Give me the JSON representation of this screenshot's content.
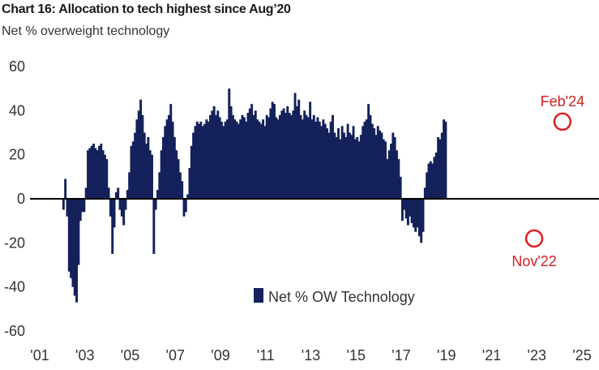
{
  "header": {
    "title": "Chart 16: Allocation to tech highest since Aug’20",
    "subtitle": "Net % overweight technology"
  },
  "chart_data": {
    "type": "bar",
    "title": "Chart 16: Allocation to tech highest since Aug’20",
    "subtitle": "Net % overweight technology",
    "ylabel": "",
    "xlabel": "",
    "ylim": [
      -60,
      60
    ],
    "yticks": [
      60,
      40,
      20,
      0,
      -20,
      -40,
      -60
    ],
    "xlim": [
      2001,
      2025
    ],
    "xticks": [
      "'01",
      "'03",
      "'05",
      "'07",
      "'09",
      "'11",
      "'13",
      "'15",
      "'17",
      "'19",
      "'21",
      "'23",
      "'25"
    ],
    "xtick_years": [
      2001,
      2003,
      2005,
      2007,
      2009,
      2011,
      2013,
      2015,
      2017,
      2019,
      2021,
      2023,
      2025
    ],
    "legend": {
      "position": "bottom-center"
    },
    "grid": false,
    "color": "#14215a",
    "series": [
      {
        "name": "Net % OW Technology",
        "x_start": "2002-01",
        "frequency": "monthly",
        "values": [
          -5,
          9,
          -8,
          -33,
          -36,
          -40,
          -44,
          -47,
          -30,
          -10,
          -6,
          -6,
          5,
          22,
          23,
          24,
          25,
          23,
          22,
          24,
          25,
          22,
          20,
          18,
          5,
          -8,
          -25,
          -13,
          3,
          5,
          -5,
          -8,
          -12,
          -5,
          4,
          12,
          24,
          26,
          30,
          36,
          40,
          45,
          38,
          30,
          25,
          28,
          22,
          20,
          -25,
          -5,
          4,
          12,
          22,
          28,
          33,
          36,
          38,
          43,
          35,
          28,
          22,
          18,
          12,
          8,
          -8,
          -6,
          2,
          14,
          24,
          30,
          33,
          35,
          34,
          35,
          33,
          34,
          36,
          35,
          38,
          40,
          42,
          38,
          40,
          37,
          35,
          33,
          35,
          36,
          50,
          42,
          38,
          36,
          35,
          34,
          36,
          38,
          37,
          35,
          39,
          41,
          43,
          38,
          40,
          36,
          35,
          34,
          36,
          33,
          38,
          37,
          41,
          44,
          43,
          37,
          36,
          38,
          40,
          41,
          39,
          42,
          39,
          38,
          40,
          48,
          42,
          45,
          38,
          36,
          40,
          38,
          37,
          44,
          36,
          38,
          35,
          37,
          35,
          33,
          36,
          34,
          32,
          30,
          35,
          38,
          30,
          28,
          32,
          27,
          33,
          30,
          28,
          34,
          30,
          29,
          33,
          27,
          28,
          26,
          29,
          33,
          35,
          36,
          43,
          38,
          34,
          32,
          29,
          33,
          31,
          30,
          27,
          26,
          18,
          22,
          25,
          30,
          28,
          22,
          18,
          10,
          -10,
          -5,
          -9,
          -12,
          -8,
          -11,
          -13,
          -15,
          -13,
          -17,
          -20,
          -15,
          5,
          12,
          16,
          17,
          16,
          19,
          21,
          28,
          27,
          30,
          36,
          35
        ]
      }
    ],
    "annotations": [
      {
        "label": "Feb'24",
        "x": "2024-02",
        "value": 35
      },
      {
        "label": "Nov'22",
        "x": "2022-11",
        "value": -18
      }
    ]
  }
}
